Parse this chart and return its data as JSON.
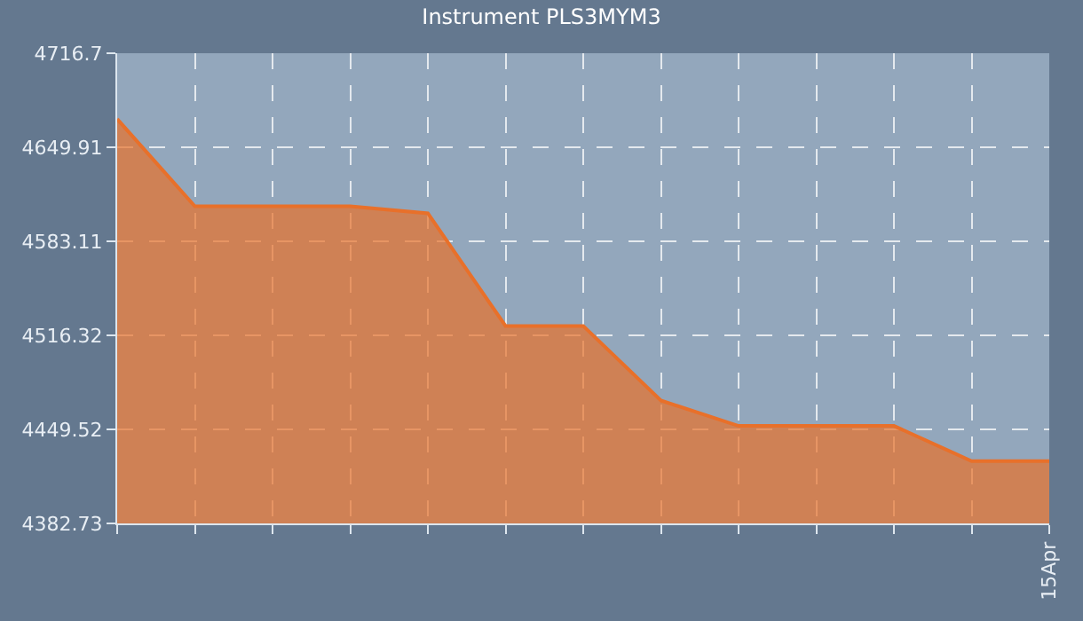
{
  "chart_data": {
    "type": "area",
    "title": "Instrument PLS3MYM3",
    "categories": [
      null,
      null,
      null,
      null,
      null,
      null,
      null,
      null,
      null,
      null,
      null,
      null,
      "15Apr"
    ],
    "series": [
      {
        "color": "#e8702a",
        "values": [
          4670,
          4608,
          4608,
          4608,
          4603,
          4523,
          4523,
          4470,
          4452,
          4452,
          4452,
          4427,
          4427
        ]
      }
    ],
    "ylim": [
      4382.73,
      4716.7
    ],
    "yticks": [
      4382.73,
      4449.52,
      4516.32,
      4583.11,
      4649.91,
      4716.7
    ],
    "grid": true,
    "line_style": "dashed"
  }
}
